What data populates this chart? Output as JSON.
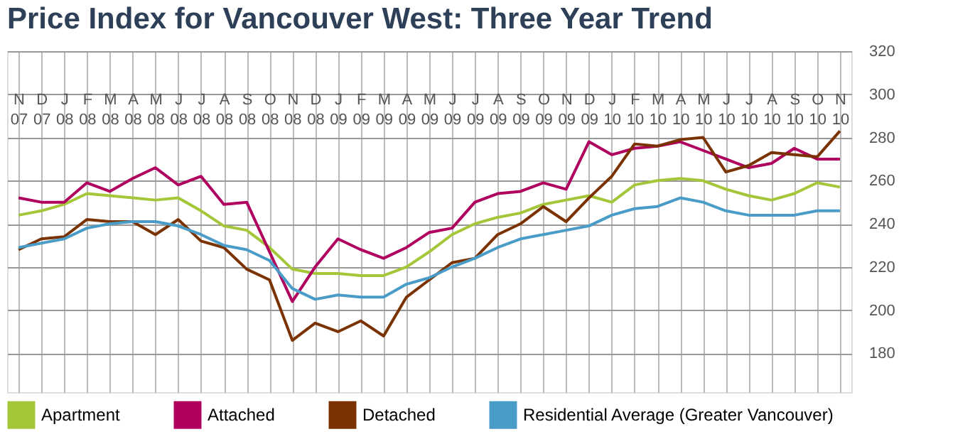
{
  "chart_data": {
    "type": "line",
    "title": "Price Index for Vancouver West: Three Year Trend",
    "categories": [
      "N 07",
      "D 07",
      "J 08",
      "F 08",
      "M 08",
      "A 08",
      "M 08",
      "J 08",
      "J 08",
      "A 08",
      "S 08",
      "O 08",
      "N 08",
      "D 08",
      "J 09",
      "F 09",
      "M 09",
      "A 09",
      "M 09",
      "J 09",
      "J 09",
      "A 09",
      "S 09",
      "O 09",
      "N 09",
      "D 09",
      "J 10",
      "F 10",
      "M 10",
      "A 10",
      "M 10",
      "J 10",
      "J 10",
      "A 10",
      "S 10",
      "O 10",
      "N 10"
    ],
    "series": [
      {
        "name": "Apartment",
        "color": "#a4c639",
        "values": [
          244,
          246,
          249,
          254,
          253,
          252,
          251,
          252,
          246,
          239,
          237,
          229,
          219,
          217,
          217,
          216,
          216,
          220,
          227,
          235,
          240,
          243,
          245,
          249,
          251,
          253,
          250,
          258,
          260,
          261,
          260,
          256,
          253,
          251,
          254,
          259,
          257
        ]
      },
      {
        "name": "Attached",
        "color": "#b0005f",
        "values": [
          252,
          250,
          250,
          259,
          255,
          261,
          266,
          258,
          262,
          249,
          250,
          227,
          204,
          220,
          233,
          228,
          224,
          229,
          236,
          238,
          250,
          254,
          255,
          259,
          256,
          278,
          272,
          275,
          276,
          278,
          274,
          270,
          266,
          268,
          275,
          270,
          270
        ]
      },
      {
        "name": "Detached",
        "color": "#7a3300",
        "values": [
          228,
          233,
          234,
          242,
          241,
          241,
          235,
          242,
          232,
          229,
          219,
          214,
          186,
          194,
          190,
          195,
          188,
          206,
          214,
          222,
          224,
          235,
          240,
          248,
          241,
          252,
          262,
          277,
          276,
          279,
          280,
          264,
          267,
          273,
          272,
          271,
          283
        ]
      },
      {
        "name": "Residential Average (Greater Vancouver)",
        "color": "#4a9cc8",
        "values": [
          229,
          231,
          233,
          238,
          240,
          241,
          241,
          239,
          235,
          230,
          228,
          223,
          210,
          205,
          207,
          206,
          206,
          212,
          215,
          220,
          224,
          229,
          233,
          235,
          237,
          239,
          244,
          247,
          248,
          252,
          250,
          246,
          244,
          244,
          244,
          246,
          246
        ]
      }
    ],
    "ylim": [
      162,
      320
    ],
    "yticks": [
      180,
      200,
      220,
      240,
      260,
      280,
      300,
      320
    ],
    "grid": true,
    "legend": "bottom",
    "marker": "none",
    "line_style": "solid"
  }
}
